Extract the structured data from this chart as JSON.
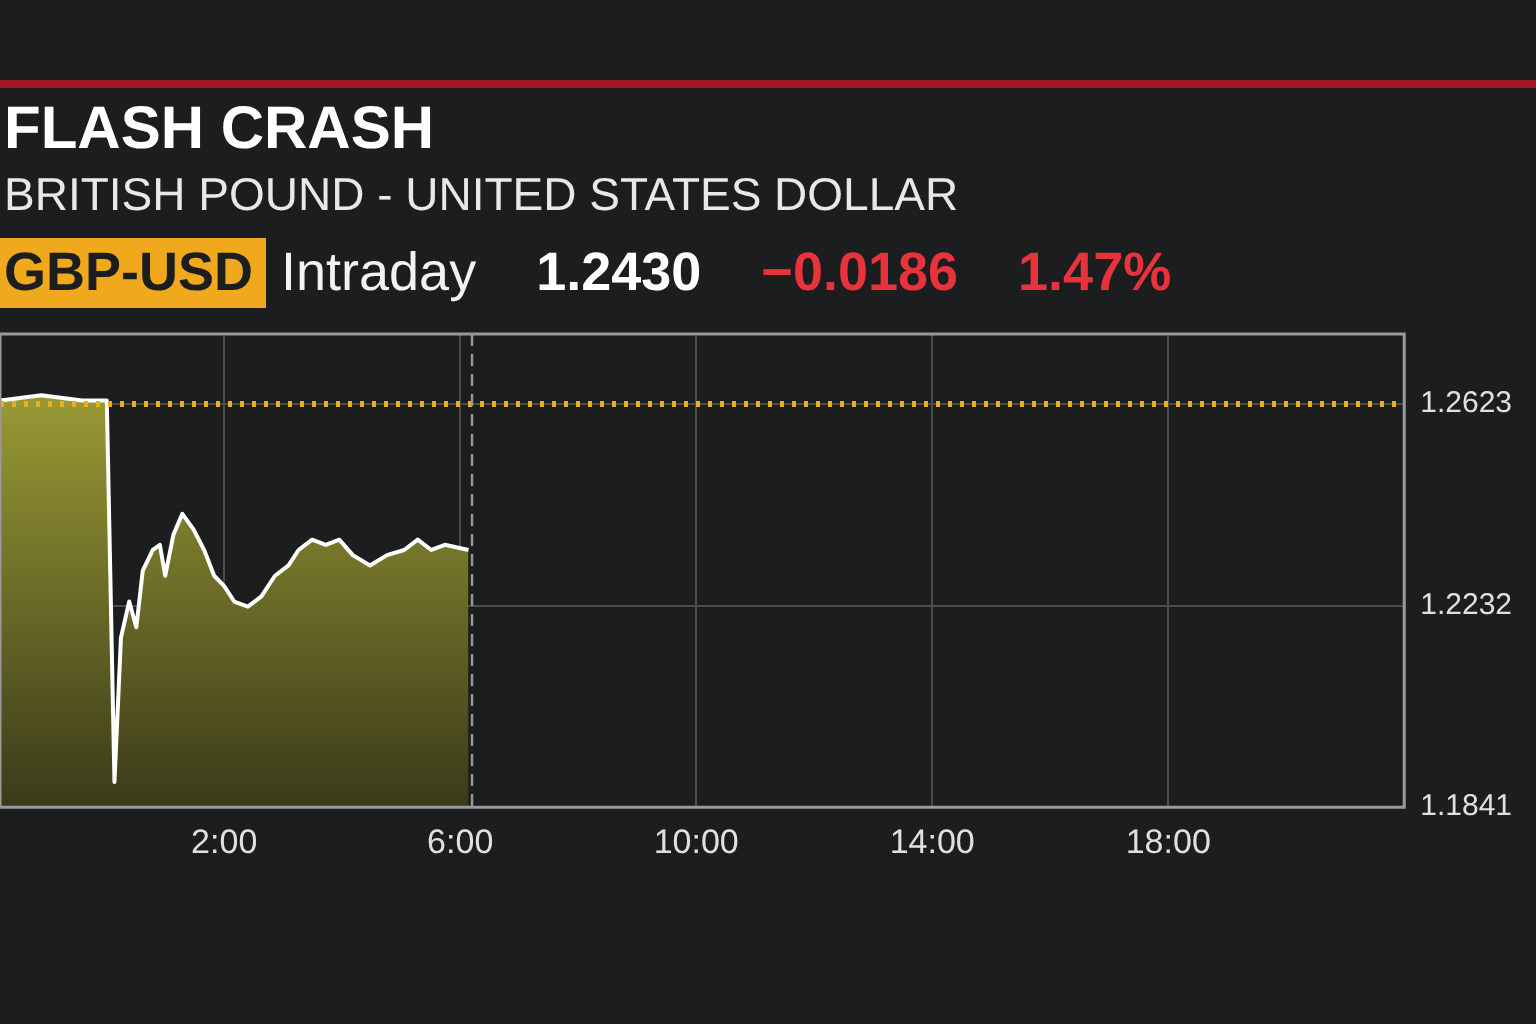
{
  "chart_data": {
    "type": "area",
    "title": "FLASH CRASH",
    "subtitle": "BRITISH POUND - UNITED STATES DOLLAR",
    "annotations": [
      "GBP-USD",
      "Intraday",
      "1.2430",
      "−0.0186",
      "1.47%"
    ],
    "x": [
      -1.79,
      -1.1,
      -0.41,
      0.01,
      0.14,
      0.25,
      0.39,
      0.51,
      0.62,
      0.79,
      0.91,
      1.0,
      1.14,
      1.29,
      1.48,
      1.66,
      1.83,
      2.0,
      2.17,
      2.4,
      2.63,
      2.86,
      3.09,
      3.26,
      3.49,
      3.72,
      3.95,
      4.18,
      4.47,
      4.76,
      5.05,
      5.28,
      5.51,
      5.74,
      6.14
    ],
    "series": [
      {
        "color": "#a8a838",
        "values": [
          1.263,
          1.264,
          1.263,
          1.263,
          1.189,
          1.217,
          1.224,
          1.219,
          1.23,
          1.234,
          1.235,
          1.229,
          1.237,
          1.241,
          1.238,
          1.234,
          1.229,
          1.227,
          1.224,
          1.223,
          1.225,
          1.229,
          1.231,
          1.234,
          1.236,
          1.235,
          1.236,
          1.233,
          1.231,
          1.233,
          1.234,
          1.236,
          1.234,
          1.235,
          1.234
        ]
      }
    ],
    "xlim": [
      -1.8,
      22
    ],
    "xticks": [
      {
        "value": 2,
        "label": "2:00"
      },
      {
        "value": 6,
        "label": "6:00"
      },
      {
        "value": 10,
        "label": "10:00"
      },
      {
        "value": 14,
        "label": "14:00"
      },
      {
        "value": 18,
        "label": "18:00"
      }
    ],
    "ylim": [
      1.1841,
      1.2759
    ],
    "yticks": [
      1.1841,
      1.2232,
      1.2623
    ],
    "ref_lines": [
      {
        "axis": "y",
        "value": 1.2623,
        "color": "#e8b020",
        "line_style": "dotted"
      },
      {
        "axis": "x",
        "value": 6.2,
        "color": "#9a9a9a",
        "line_style": "dashed"
      }
    ],
    "grid": true,
    "legend": false
  }
}
